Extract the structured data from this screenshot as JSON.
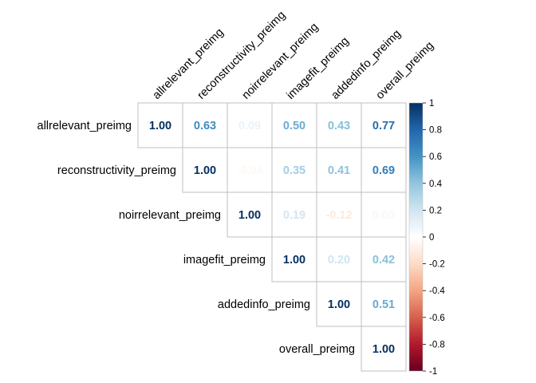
{
  "chart_data": {
    "type": "heatmap",
    "variables": [
      "allrelevant_preimg",
      "reconstructivity_preimg",
      "noirrelevant_preimg",
      "imagefit_preimg",
      "addedinfo_preimg",
      "overall_preimg"
    ],
    "matrix": [
      [
        1.0,
        0.63,
        0.09,
        0.5,
        0.43,
        0.77
      ],
      [
        0.63,
        1.0,
        -0.04,
        0.35,
        0.41,
        0.69
      ],
      [
        0.09,
        -0.04,
        1.0,
        0.19,
        -0.12,
        0.05
      ],
      [
        0.5,
        0.35,
        0.19,
        1.0,
        0.2,
        0.42
      ],
      [
        0.43,
        0.41,
        -0.12,
        0.2,
        1.0,
        0.51
      ],
      [
        0.77,
        0.69,
        0.05,
        0.42,
        0.51,
        1.0
      ]
    ],
    "display": "upper triangle, values printed as numbers",
    "value_format": "2 decimals",
    "colorbar": {
      "range": [
        -1,
        1
      ],
      "ticks": [
        "1",
        "0.8",
        "0.6",
        "0.4",
        "0.2",
        "0",
        "-0.2",
        "-0.4",
        "-0.6",
        "-0.8",
        "-1"
      ],
      "colors": [
        "#67001F",
        "#B2182B",
        "#D6604D",
        "#F4A582",
        "#FDDBC7",
        "#FFFFFF",
        "#D1E5F0",
        "#92C5DE",
        "#4393C3",
        "#2166AC",
        "#053061"
      ]
    },
    "grid": true,
    "title": "",
    "xlabel": "",
    "ylabel": ""
  }
}
